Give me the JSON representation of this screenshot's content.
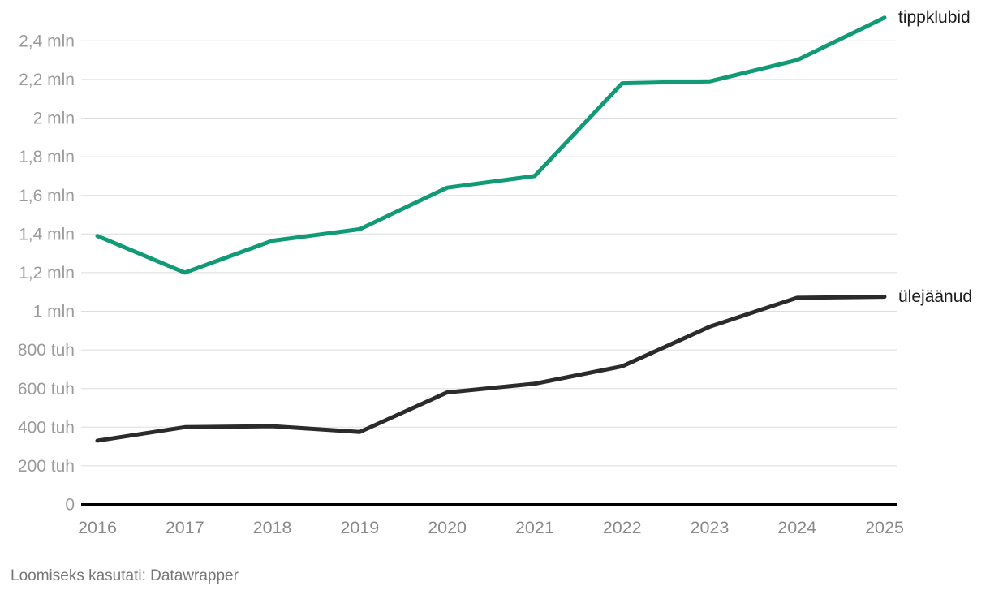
{
  "chart_data": {
    "type": "line",
    "title": "",
    "x": [
      2016,
      2017,
      2018,
      2019,
      2020,
      2021,
      2022,
      2023,
      2024,
      2025
    ],
    "unit": "tuh",
    "series": [
      {
        "name": "tippklubid",
        "color": "#109b76",
        "values": [
          1390,
          1200,
          1365,
          1425,
          1640,
          1700,
          2180,
          2190,
          2300,
          2520
        ]
      },
      {
        "name": "ülejäänud",
        "color": "#2b2b2b",
        "values": [
          330,
          400,
          405,
          375,
          580,
          625,
          715,
          920,
          1070,
          1075
        ]
      }
    ],
    "yticks": [
      {
        "value": 0,
        "label": "0"
      },
      {
        "value": 200,
        "label": "200 tuh"
      },
      {
        "value": 400,
        "label": "400 tuh"
      },
      {
        "value": 600,
        "label": "600 tuh"
      },
      {
        "value": 800,
        "label": "800 tuh"
      },
      {
        "value": 1000,
        "label": "1 mln"
      },
      {
        "value": 1200,
        "label": "1,2 mln"
      },
      {
        "value": 1400,
        "label": "1,4 mln"
      },
      {
        "value": 1600,
        "label": "1,6 mln"
      },
      {
        "value": 1800,
        "label": "1,8 mln"
      },
      {
        "value": 2000,
        "label": "2 mln"
      },
      {
        "value": 2200,
        "label": "2,2 mln"
      },
      {
        "value": 2400,
        "label": "2,4 mln"
      }
    ],
    "ylim": [
      0,
      2520
    ],
    "grid": true,
    "legend_position": "right-of-line-end"
  },
  "colors": {
    "gridline": "#dedede",
    "baseline": "#000000",
    "y_tick_text": "#9b9b9b",
    "x_tick_text": "#8a8a8a",
    "series_label_text": "#1c1c1c",
    "credit_text": "#767676",
    "background": "#ffffff"
  },
  "footer": {
    "credit": "Loomiseks kasutati: Datawrapper"
  }
}
